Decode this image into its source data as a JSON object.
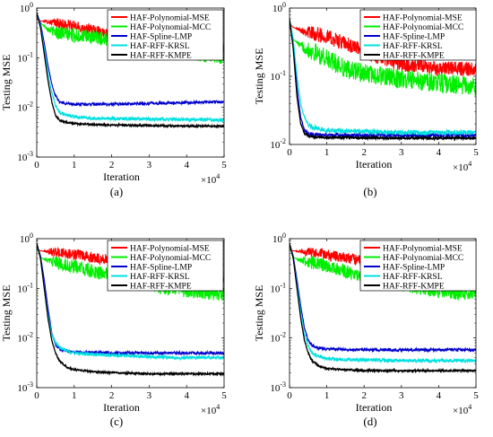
{
  "chart_data": [
    {
      "type": "line",
      "caption": "(a)",
      "xlabel": "Iteration",
      "ylabel": "Testing MSE",
      "x_exponent_label": "×10",
      "x_exponent": "4",
      "xlim": [
        0,
        5
      ],
      "xticks": [
        "0",
        "1",
        "2",
        "3",
        "4",
        "5"
      ],
      "ylim": [
        0.001,
        1
      ],
      "yscale": "log",
      "yticks": [
        "10",
        "10",
        "10",
        "10"
      ],
      "ytick_exponents": [
        "-3",
        "-2",
        "-1",
        "0"
      ],
      "legend_position": "top-right",
      "series": [
        {
          "name": "HAF-Polynomial-MSE",
          "color": "#ff0000",
          "x": [
            0,
            0.1,
            0.3,
            0.5,
            0.8,
            1.2,
            1.6,
            2.0,
            2.5,
            3.0,
            3.5,
            4.0,
            4.5,
            5.0
          ],
          "y": [
            0.6,
            0.55,
            0.53,
            0.5,
            0.46,
            0.4,
            0.35,
            0.3,
            0.25,
            0.22,
            0.2,
            0.18,
            0.16,
            0.15
          ]
        },
        {
          "name": "HAF-Polynomial-MCC",
          "color": "#00ee00",
          "x": [
            0,
            0.1,
            0.3,
            0.5,
            0.8,
            1.2,
            1.6,
            2.0,
            2.5,
            3.0,
            3.5,
            4.0,
            4.5,
            5.0
          ],
          "y": [
            0.7,
            0.5,
            0.38,
            0.33,
            0.3,
            0.27,
            0.25,
            0.23,
            0.2,
            0.17,
            0.15,
            0.13,
            0.11,
            0.1
          ]
        },
        {
          "name": "HAF-Spline-LMP",
          "color": "#0000cc",
          "x": [
            0,
            0.1,
            0.2,
            0.3,
            0.4,
            0.5,
            0.6,
            0.8,
            1.0,
            1.5,
            2.0,
            3.0,
            4.0,
            5.0
          ],
          "y": [
            0.8,
            0.5,
            0.2,
            0.07,
            0.03,
            0.017,
            0.013,
            0.012,
            0.0115,
            0.0115,
            0.0115,
            0.012,
            0.0125,
            0.013
          ]
        },
        {
          "name": "HAF-RFF-KRSL",
          "color": "#00e0e0",
          "x": [
            0,
            0.1,
            0.2,
            0.3,
            0.4,
            0.5,
            0.6,
            0.8,
            1.0,
            1.5,
            2.0,
            3.0,
            4.0,
            5.0
          ],
          "y": [
            0.8,
            0.45,
            0.15,
            0.05,
            0.02,
            0.011,
            0.008,
            0.007,
            0.0065,
            0.006,
            0.006,
            0.0058,
            0.0057,
            0.0056
          ]
        },
        {
          "name": "HAF-RFF-KMPE",
          "color": "#000000",
          "x": [
            0,
            0.1,
            0.2,
            0.3,
            0.4,
            0.5,
            0.6,
            0.8,
            1.0,
            1.5,
            2.0,
            3.0,
            4.0,
            5.0
          ],
          "y": [
            0.8,
            0.4,
            0.12,
            0.035,
            0.013,
            0.007,
            0.0055,
            0.005,
            0.0047,
            0.0045,
            0.0044,
            0.0043,
            0.0042,
            0.0042
          ]
        }
      ]
    },
    {
      "type": "line",
      "caption": "(b)",
      "xlabel": "Iteration",
      "ylabel": "Testing MSE",
      "x_exponent_label": "×10",
      "x_exponent": "4",
      "xlim": [
        0,
        5
      ],
      "xticks": [
        "0",
        "1",
        "2",
        "3",
        "4",
        "5"
      ],
      "ylim": [
        0.01,
        1
      ],
      "yscale": "log",
      "yticks": [
        "10",
        "10",
        "10"
      ],
      "ytick_exponents": [
        "-2",
        "-1",
        "0"
      ],
      "legend_position": "top-right",
      "series": [
        {
          "name": "HAF-Polynomial-MSE",
          "color": "#ff0000",
          "x": [
            0,
            0.1,
            0.3,
            0.5,
            1.0,
            1.5,
            2.0,
            2.5,
            3.0,
            3.5,
            4.0,
            4.5,
            5.0
          ],
          "y": [
            0.6,
            0.52,
            0.48,
            0.45,
            0.38,
            0.3,
            0.23,
            0.18,
            0.15,
            0.14,
            0.13,
            0.13,
            0.13
          ]
        },
        {
          "name": "HAF-Polynomial-MCC",
          "color": "#00ee00",
          "x": [
            0,
            0.1,
            0.3,
            0.5,
            1.0,
            1.5,
            2.0,
            2.5,
            3.0,
            3.5,
            4.0,
            4.5,
            5.0
          ],
          "y": [
            0.6,
            0.35,
            0.28,
            0.25,
            0.18,
            0.13,
            0.11,
            0.1,
            0.09,
            0.085,
            0.08,
            0.075,
            0.07
          ]
        },
        {
          "name": "HAF-Spline-LMP",
          "color": "#0000cc",
          "x": [
            0,
            0.1,
            0.2,
            0.3,
            0.4,
            0.5,
            0.6,
            0.8,
            1.0,
            2.0,
            3.0,
            4.0,
            5.0
          ],
          "y": [
            0.7,
            0.3,
            0.07,
            0.025,
            0.016,
            0.0145,
            0.014,
            0.0138,
            0.0137,
            0.0136,
            0.0136,
            0.0136,
            0.0136
          ]
        },
        {
          "name": "HAF-RFF-KRSL",
          "color": "#00e0e0",
          "x": [
            0,
            0.1,
            0.2,
            0.3,
            0.4,
            0.5,
            0.6,
            0.8,
            1.0,
            2.0,
            3.0,
            4.0,
            5.0
          ],
          "y": [
            0.7,
            0.35,
            0.1,
            0.04,
            0.025,
            0.02,
            0.018,
            0.017,
            0.016,
            0.0155,
            0.015,
            0.015,
            0.015
          ]
        },
        {
          "name": "HAF-RFF-KMPE",
          "color": "#000000",
          "x": [
            0,
            0.1,
            0.2,
            0.3,
            0.4,
            0.5,
            0.6,
            0.8,
            1.0,
            2.0,
            3.0,
            4.0,
            5.0
          ],
          "y": [
            0.7,
            0.25,
            0.05,
            0.02,
            0.0145,
            0.0135,
            0.013,
            0.0128,
            0.0127,
            0.0125,
            0.0124,
            0.0124,
            0.0124
          ]
        }
      ]
    },
    {
      "type": "line",
      "caption": "(c)",
      "xlabel": "Iteration",
      "ylabel": "Testing MSE",
      "x_exponent_label": "×10",
      "x_exponent": "4",
      "xlim": [
        0,
        5
      ],
      "xticks": [
        "0",
        "1",
        "2",
        "3",
        "4",
        "5"
      ],
      "ylim": [
        0.001,
        1
      ],
      "yscale": "log",
      "yticks": [
        "10",
        "10",
        "10",
        "10"
      ],
      "ytick_exponents": [
        "-3",
        "-2",
        "-1",
        "0"
      ],
      "legend_position": "top-right",
      "series": [
        {
          "name": "HAF-Polynomial-MSE",
          "color": "#ff0000",
          "x": [
            0,
            0.1,
            0.3,
            0.5,
            1.0,
            1.5,
            2.0,
            2.5,
            3.0,
            3.5,
            4.0,
            4.5,
            5.0
          ],
          "y": [
            0.6,
            0.57,
            0.55,
            0.53,
            0.48,
            0.42,
            0.36,
            0.3,
            0.25,
            0.21,
            0.18,
            0.16,
            0.15
          ]
        },
        {
          "name": "HAF-Polynomial-MCC",
          "color": "#00ee00",
          "x": [
            0,
            0.1,
            0.3,
            0.5,
            1.0,
            1.5,
            2.0,
            2.5,
            3.0,
            3.5,
            4.0,
            4.5,
            5.0
          ],
          "y": [
            0.7,
            0.42,
            0.36,
            0.33,
            0.27,
            0.22,
            0.18,
            0.15,
            0.12,
            0.1,
            0.09,
            0.08,
            0.075
          ]
        },
        {
          "name": "HAF-Spline-LMP",
          "color": "#0000cc",
          "x": [
            0,
            0.1,
            0.2,
            0.3,
            0.4,
            0.5,
            0.6,
            0.8,
            1.0,
            2.0,
            3.0,
            4.0,
            5.0
          ],
          "y": [
            0.8,
            0.45,
            0.15,
            0.04,
            0.013,
            0.0075,
            0.006,
            0.0055,
            0.0052,
            0.005,
            0.005,
            0.005,
            0.005
          ]
        },
        {
          "name": "HAF-RFF-KRSL",
          "color": "#00e0e0",
          "x": [
            0,
            0.1,
            0.2,
            0.3,
            0.4,
            0.5,
            0.6,
            0.8,
            1.0,
            2.0,
            3.0,
            4.0,
            5.0
          ],
          "y": [
            0.8,
            0.4,
            0.1,
            0.03,
            0.012,
            0.008,
            0.0065,
            0.0055,
            0.005,
            0.0045,
            0.0042,
            0.004,
            0.004
          ]
        },
        {
          "name": "HAF-RFF-KMPE",
          "color": "#000000",
          "x": [
            0,
            0.1,
            0.2,
            0.3,
            0.4,
            0.5,
            0.6,
            0.8,
            1.0,
            1.5,
            2.0,
            3.0,
            4.0,
            5.0
          ],
          "y": [
            0.8,
            0.4,
            0.1,
            0.025,
            0.009,
            0.005,
            0.0035,
            0.0026,
            0.0023,
            0.0021,
            0.002,
            0.0019,
            0.0019,
            0.0019
          ]
        }
      ]
    },
    {
      "type": "line",
      "caption": "(d)",
      "xlabel": "Iteration",
      "ylabel": "Testing MSE",
      "x_exponent_label": "×10",
      "x_exponent": "4",
      "xlim": [
        0,
        5
      ],
      "xticks": [
        "0",
        "1",
        "2",
        "3",
        "4",
        "5"
      ],
      "ylim": [
        0.001,
        1
      ],
      "yscale": "log",
      "yticks": [
        "10",
        "10",
        "10",
        "10"
      ],
      "ytick_exponents": [
        "-3",
        "-2",
        "-1",
        "0"
      ],
      "legend_position": "top-right",
      "series": [
        {
          "name": "HAF-Polynomial-MSE",
          "color": "#ff0000",
          "x": [
            0,
            0.1,
            0.3,
            0.5,
            1.0,
            1.5,
            2.0,
            2.5,
            3.0,
            3.5,
            4.0,
            4.5,
            5.0
          ],
          "y": [
            0.6,
            0.57,
            0.55,
            0.53,
            0.47,
            0.41,
            0.35,
            0.29,
            0.24,
            0.2,
            0.18,
            0.16,
            0.15
          ]
        },
        {
          "name": "HAF-Polynomial-MCC",
          "color": "#00ee00",
          "x": [
            0,
            0.1,
            0.3,
            0.5,
            1.0,
            1.5,
            2.0,
            2.5,
            3.0,
            3.5,
            4.0,
            4.5,
            5.0
          ],
          "y": [
            0.7,
            0.42,
            0.37,
            0.34,
            0.28,
            0.22,
            0.18,
            0.15,
            0.12,
            0.1,
            0.09,
            0.08,
            0.08
          ]
        },
        {
          "name": "HAF-Spline-LMP",
          "color": "#0000cc",
          "x": [
            0,
            0.1,
            0.2,
            0.3,
            0.4,
            0.5,
            0.6,
            0.8,
            1.0,
            2.0,
            3.0,
            4.0,
            5.0
          ],
          "y": [
            0.8,
            0.45,
            0.15,
            0.045,
            0.016,
            0.009,
            0.007,
            0.0062,
            0.006,
            0.0058,
            0.0058,
            0.0058,
            0.0058
          ]
        },
        {
          "name": "HAF-RFF-KRSL",
          "color": "#00e0e0",
          "x": [
            0,
            0.1,
            0.2,
            0.3,
            0.4,
            0.5,
            0.6,
            0.8,
            1.0,
            2.0,
            3.0,
            4.0,
            5.0
          ],
          "y": [
            0.8,
            0.4,
            0.12,
            0.035,
            0.012,
            0.007,
            0.005,
            0.0042,
            0.0038,
            0.0036,
            0.0035,
            0.0035,
            0.0035
          ]
        },
        {
          "name": "HAF-RFF-KMPE",
          "color": "#000000",
          "x": [
            0,
            0.1,
            0.2,
            0.3,
            0.4,
            0.5,
            0.6,
            0.8,
            1.0,
            1.5,
            2.0,
            3.0,
            4.0,
            5.0
          ],
          "y": [
            0.8,
            0.4,
            0.1,
            0.025,
            0.009,
            0.005,
            0.0035,
            0.0027,
            0.0024,
            0.0023,
            0.0022,
            0.0022,
            0.0022,
            0.0022
          ]
        }
      ]
    }
  ]
}
